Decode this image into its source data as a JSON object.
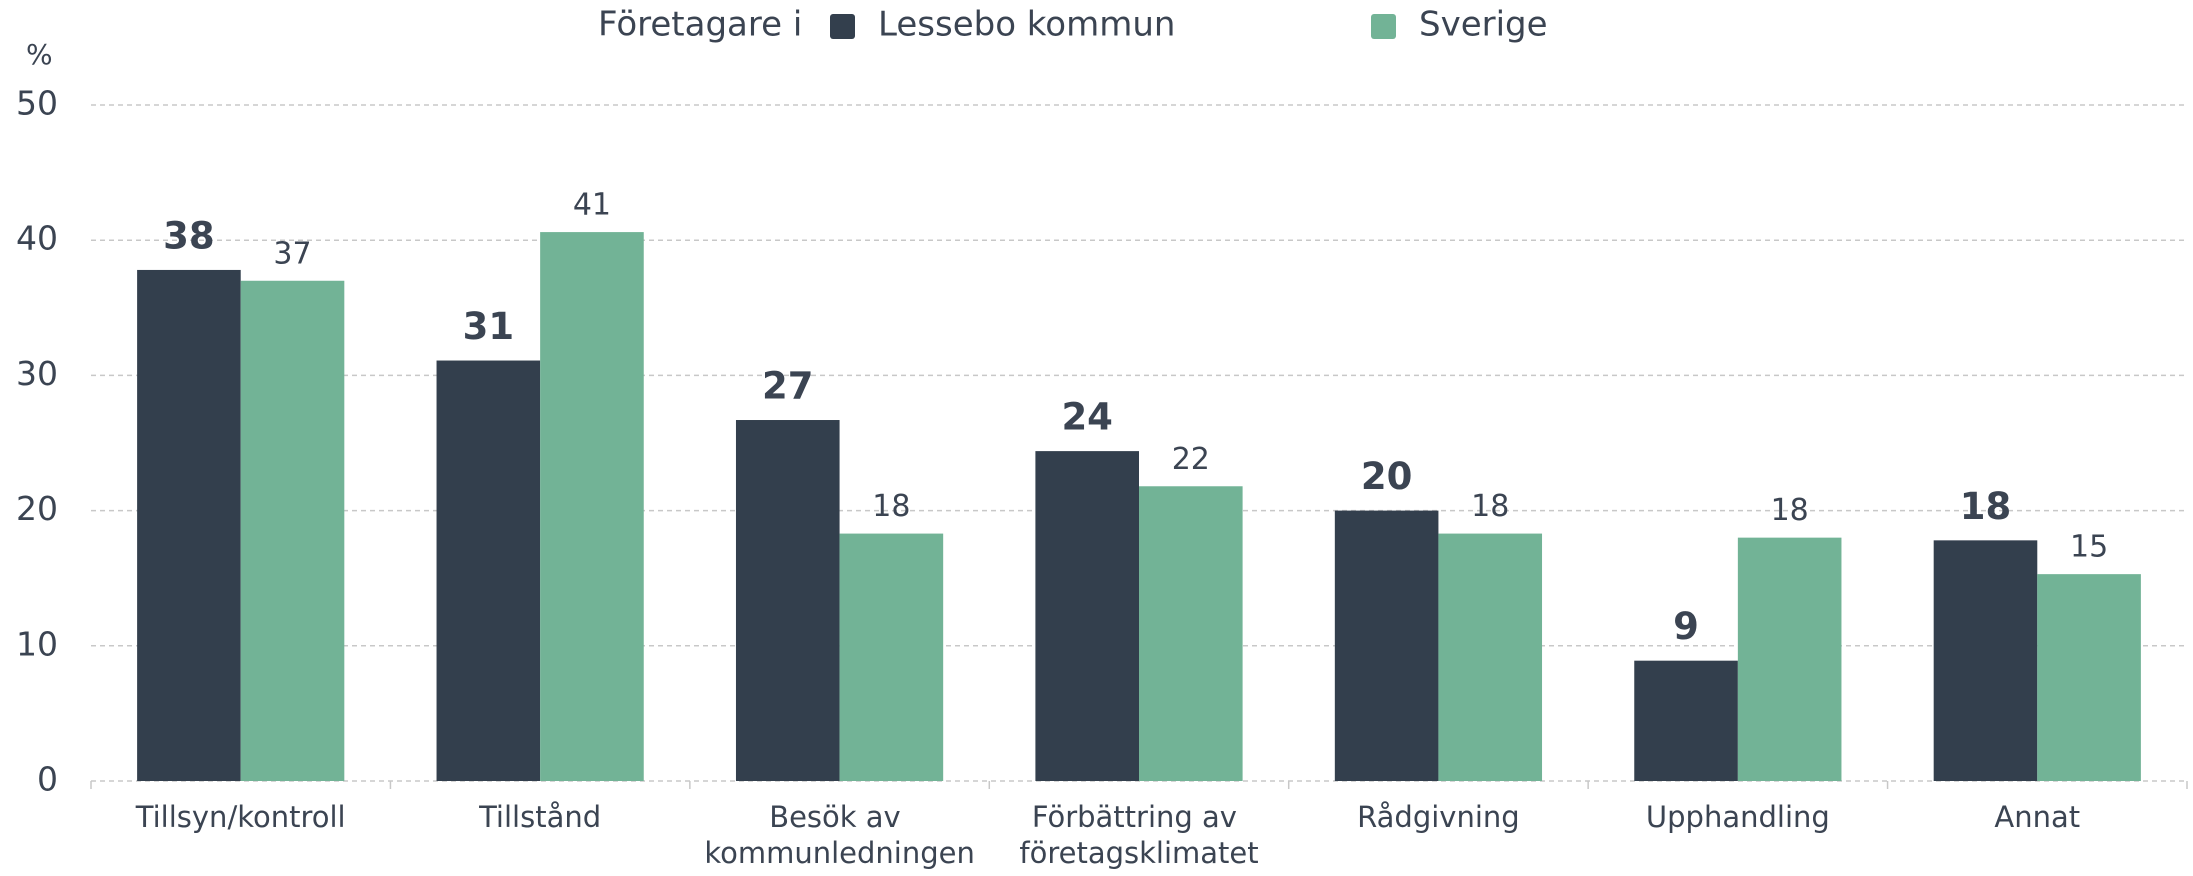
{
  "chart_data": {
    "type": "bar",
    "legend_title": "Företagare i",
    "y_label": "%",
    "categories": [
      "Tillsyn/kontroll",
      "Tillstånd",
      "Besök av kommunledningen",
      "Förbättring av företagsklimatet",
      "Rådgivning",
      "Upphandling",
      "Annat"
    ],
    "series": [
      {
        "name": "Lessebo kommun",
        "color": "#333f4d",
        "values": [
          37.8,
          31.1,
          26.7,
          24.4,
          20.0,
          8.9,
          17.8
        ],
        "value_labels": [
          "38",
          "31",
          "27",
          "24",
          "20",
          "9",
          "18"
        ]
      },
      {
        "name": "Sverige",
        "color": "#72b396",
        "values": [
          37.0,
          40.6,
          18.3,
          21.8,
          18.3,
          18.0,
          15.3
        ],
        "value_labels": [
          "37",
          "41",
          "18",
          "22",
          "18",
          "18",
          "15"
        ]
      }
    ],
    "ylim": [
      0,
      50
    ],
    "yticks": [
      0,
      10,
      20,
      30,
      40,
      50
    ],
    "grid": true
  }
}
